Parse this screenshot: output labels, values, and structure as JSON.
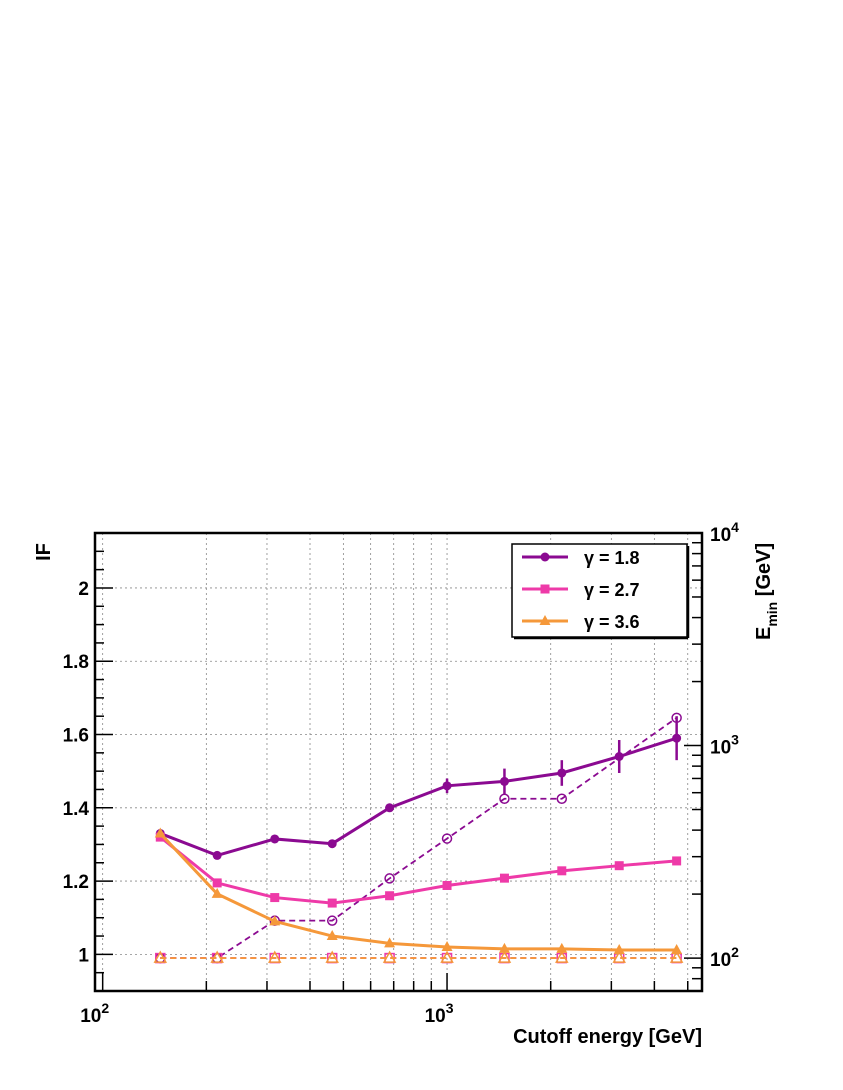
{
  "chart_data": {
    "type": "line",
    "xlabel": "Cutoff energy [GeV]",
    "ylabel": "IF",
    "y2label": "E",
    "y2label_sub": "min",
    "y2label_unit": " [GeV]",
    "x_scale": "log",
    "xlim": [
      95,
      5500
    ],
    "ylim": [
      0.9,
      2.15
    ],
    "y2_scale": "log",
    "y2lim": [
      70,
      10000
    ],
    "grid": true,
    "legend_position": "top-right",
    "x_tick_labels": [
      {
        "value": 100,
        "base": "10",
        "exp": "2"
      },
      {
        "value": 1000,
        "base": "10",
        "exp": "3"
      }
    ],
    "y_tick_labels": [
      "1",
      "1.2",
      "1.4",
      "1.6",
      "1.8",
      "2"
    ],
    "y2_tick_labels": [
      {
        "value": 100,
        "base": "10",
        "exp": "2"
      },
      {
        "value": 1000,
        "base": "10",
        "exp": "3"
      },
      {
        "value": 10000,
        "base": "10",
        "exp": "4"
      }
    ],
    "x": [
      147,
      215,
      316,
      464,
      681,
      1000,
      1468,
      2154,
      3162,
      4642
    ],
    "series": [
      {
        "name": "γ = 1.8",
        "color": "#8B0A91",
        "marker": "circle",
        "values": [
          1.33,
          1.27,
          1.315,
          1.302,
          1.4,
          1.46,
          1.472,
          1.495,
          1.54,
          1.59
        ],
        "errors": [
          0.005,
          0.005,
          0.005,
          0.005,
          0.01,
          0.02,
          0.035,
          0.035,
          0.045,
          0.06
        ]
      },
      {
        "name": "γ = 2.7",
        "color": "#EE3AA8",
        "marker": "square",
        "values": [
          1.32,
          1.195,
          1.155,
          1.14,
          1.16,
          1.188,
          1.208,
          1.228,
          1.242,
          1.255
        ],
        "errors": [
          0,
          0,
          0,
          0,
          0,
          0,
          0,
          0,
          0,
          0
        ]
      },
      {
        "name": "γ = 3.6",
        "color": "#F5983A",
        "marker": "triangle",
        "values": [
          1.33,
          1.165,
          1.09,
          1.05,
          1.03,
          1.02,
          1.015,
          1.015,
          1.012,
          1.012
        ],
        "errors": [
          0,
          0,
          0,
          0,
          0,
          0,
          0,
          0,
          0,
          0
        ]
      }
    ],
    "emin_series": [
      {
        "color": "#8B0A91",
        "marker": "open-circle",
        "steps": [
          [
            147,
            100
          ],
          [
            215,
            100
          ],
          [
            316,
            150
          ],
          [
            464,
            150
          ],
          [
            681,
            237
          ],
          [
            1000,
            365
          ],
          [
            1468,
            562
          ],
          [
            2154,
            562
          ],
          [
            4642,
            1350
          ]
        ]
      },
      {
        "color": "#EE3AA8",
        "marker": "open-square",
        "steps": [
          [
            147,
            100
          ],
          [
            215,
            100
          ],
          [
            316,
            100
          ],
          [
            464,
            100
          ],
          [
            681,
            100
          ],
          [
            1000,
            100
          ],
          [
            1468,
            100
          ],
          [
            2154,
            100
          ],
          [
            3162,
            100
          ],
          [
            4642,
            100
          ]
        ]
      },
      {
        "color": "#F5983A",
        "marker": "open-triangle",
        "steps": [
          [
            147,
            100
          ],
          [
            215,
            100
          ],
          [
            316,
            100
          ],
          [
            464,
            100
          ],
          [
            681,
            100
          ],
          [
            1000,
            100
          ],
          [
            1468,
            100
          ],
          [
            2154,
            100
          ],
          [
            3162,
            100
          ],
          [
            4642,
            100
          ]
        ]
      }
    ]
  }
}
